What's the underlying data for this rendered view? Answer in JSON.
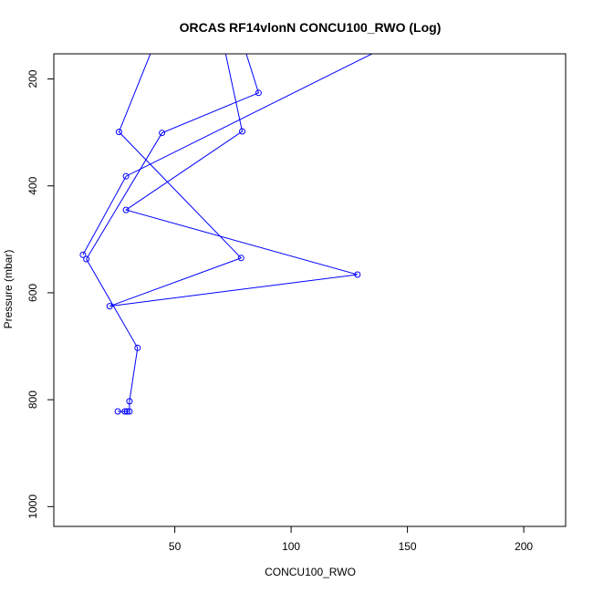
{
  "chart_data": {
    "type": "line",
    "title": "ORCAS RF14vlonN CONCU100_RWO (Log)",
    "xlabel": "CONCU100_RWO",
    "ylabel": "Pressure (mbar)",
    "xlim": [
      -2,
      218
    ],
    "ylim": [
      1037,
      153
    ],
    "y_reversed": true,
    "x_ticks": [
      50,
      100,
      150,
      200
    ],
    "y_ticks": [
      200,
      400,
      600,
      800,
      1000
    ],
    "grid": false,
    "series": [
      {
        "color": "#0000ff",
        "marker": "open-circle",
        "points": [
          {
            "x": 25.5,
            "y": 822,
            "marker": true
          },
          {
            "x": 28.5,
            "y": 822,
            "marker": true
          },
          {
            "x": 29.5,
            "y": 822,
            "marker": true
          },
          {
            "x": 30.5,
            "y": 822,
            "marker": true
          },
          {
            "x": 30.5,
            "y": 803,
            "marker": true
          },
          {
            "x": 34.0,
            "y": 703,
            "marker": true
          },
          {
            "x": 12.0,
            "y": 537,
            "marker": true
          },
          {
            "x": 44.5,
            "y": 301,
            "marker": true
          },
          {
            "x": 86.0,
            "y": 226,
            "marker": true
          },
          {
            "x": 78.0,
            "y": 115,
            "marker": false
          },
          {
            "x": 70.0,
            "y": 115,
            "marker": false
          },
          {
            "x": 79.0,
            "y": 298,
            "marker": true
          },
          {
            "x": 29.0,
            "y": 445,
            "marker": true
          },
          {
            "x": 128.5,
            "y": 566,
            "marker": true
          },
          {
            "x": 22.0,
            "y": 625,
            "marker": true
          },
          {
            "x": 78.5,
            "y": 535,
            "marker": true
          },
          {
            "x": 26.0,
            "y": 299,
            "marker": true
          },
          {
            "x": 43.0,
            "y": 115,
            "marker": false
          }
        ]
      },
      {
        "color": "#0000ff",
        "marker": "open-circle",
        "points": [
          {
            "x": 150.0,
            "y": 120,
            "marker": false
          },
          {
            "x": 29.0,
            "y": 382,
            "marker": true
          },
          {
            "x": 10.5,
            "y": 529,
            "marker": true
          }
        ]
      }
    ]
  }
}
